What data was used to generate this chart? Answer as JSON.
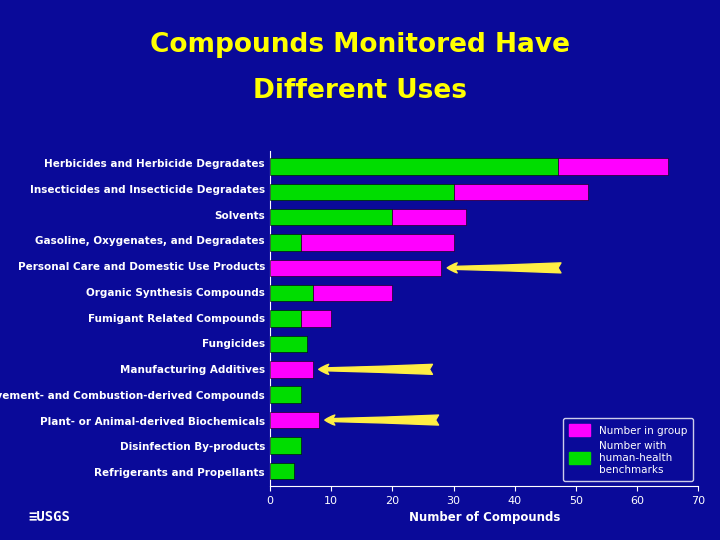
{
  "title_line1": "Compounds Monitored Have",
  "title_line2": "Different Uses",
  "background_color": "#0a0a99",
  "title_color": "#ffff00",
  "label_color": "#ffffff",
  "categories": [
    "Herbicides and Herbicide Degradates",
    "Insecticides and Insecticide Degradates",
    "Solvents",
    "Gasoline, Oxygenates, and Degradates",
    "Personal Care and Domestic Use Products",
    "Organic Synthesis Compounds",
    "Fumigant Related Compounds",
    "Fungicides",
    "Manufacturing Additives",
    "Pavement- and Combustion-derived Compounds",
    "Plant- or Animal-derived Biochemicals",
    "Disinfection By-products",
    "Refrigerants and Propellants"
  ],
  "green_values": [
    47,
    30,
    20,
    5,
    0,
    7,
    5,
    6,
    0,
    5,
    0,
    5,
    4
  ],
  "magenta_values": [
    18,
    22,
    12,
    25,
    28,
    13,
    5,
    0,
    7,
    0,
    8,
    0,
    0
  ],
  "green_color": "#00dd00",
  "magenta_color": "#ff00ff",
  "arrow_color": "#ffee44",
  "arrow_rows": [
    4,
    8,
    10
  ],
  "xlim": [
    0,
    70
  ],
  "xticks": [
    0,
    10,
    20,
    30,
    40,
    50,
    60,
    70
  ],
  "xlabel": "Number of Compounds",
  "legend_pink_label": "Number in group",
  "legend_green_label": "Number with\nhuman-health\nbenchmarks",
  "bar_height": 0.65,
  "title_fontsize": 19,
  "label_fontsize": 7.5
}
